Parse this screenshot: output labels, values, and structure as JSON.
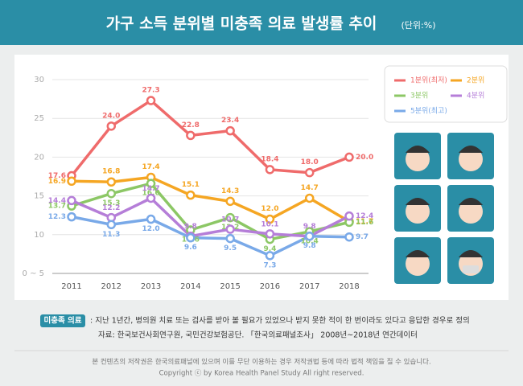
{
  "chart_data": {
    "type": "line",
    "title": "가구 소득 분위별 미충족 의료 발생률 추이",
    "subtitle": "(단위:%)",
    "categories": [
      "2011",
      "2012",
      "2013",
      "2014",
      "2015",
      "2016",
      "2017",
      "2018"
    ],
    "series": [
      {
        "name": "1분위(최저)",
        "color": "#ef6b6b",
        "values": [
          17.6,
          24.0,
          27.3,
          22.8,
          23.4,
          18.4,
          18.0,
          20.0
        ],
        "value_labels": [
          "17.6",
          "24.0",
          "27.3",
          "22.8",
          "23.4",
          "18.4",
          "18.0",
          "20.0"
        ]
      },
      {
        "name": "2분위",
        "color": "#f5a623",
        "values": [
          16.9,
          16.8,
          17.4,
          15.1,
          14.3,
          12.0,
          14.7,
          11.7
        ],
        "value_labels": [
          "16.9",
          "16.8",
          "17.4",
          "15.1",
          "14.3",
          "12.0",
          "14.7",
          "11.7"
        ]
      },
      {
        "name": "3분위",
        "color": "#8cc765",
        "values": [
          13.7,
          15.3,
          16.6,
          10.6,
          12.2,
          9.4,
          10.4,
          11.6
        ],
        "value_labels": [
          "13.7",
          "15.3",
          "16.6",
          "10.6",
          "12.2",
          "9.4",
          "10.4",
          "11.6"
        ]
      },
      {
        "name": "4분위",
        "color": "#b57ed8",
        "values": [
          14.4,
          12.2,
          14.7,
          9.8,
          10.7,
          10.1,
          9.8,
          12.4
        ],
        "value_labels": [
          "14.4",
          "12.2",
          "14.7",
          "9.8",
          "10.7",
          "10.1",
          "9.8",
          "12.4"
        ]
      },
      {
        "name": "5분위(최고)",
        "color": "#79a9e8",
        "values": [
          12.3,
          11.3,
          12.0,
          9.6,
          9.5,
          7.3,
          9.8,
          9.7
        ],
        "value_labels": [
          "12.3",
          "11.3",
          "12.0",
          "9.6",
          "9.5",
          "7.3",
          "9.8",
          "9.7"
        ]
      }
    ],
    "ylim": [
      5,
      30
    ],
    "yticks": [
      {
        "value": 5,
        "label": "0 ~ 5"
      },
      10,
      15,
      20,
      25,
      30
    ],
    "grid": true,
    "legend": "right"
  },
  "notes": {
    "term": "미충족 의료",
    "definition": ": 지난 1년간, 병의원 치료 또는 검사를 받아 볼 필요가 있었으나 받지 못한 적이 한 번이라도 있다고 응답한 경우로 정의",
    "source": "자료: 한국보건사회연구원, 국민건강보험공단. 「한국의료패널조사」 2008년~2018년 연간데이터"
  },
  "copyright": [
    "본 컨텐츠의 저작권은 한국의료패널에 있으며 이를 무단 이용하는 경우 저작권법 등에 따라 법적 책임을 질 수 있습니다.",
    "Copyright ⓒ by Korea Health Panel Study All right reserved."
  ]
}
